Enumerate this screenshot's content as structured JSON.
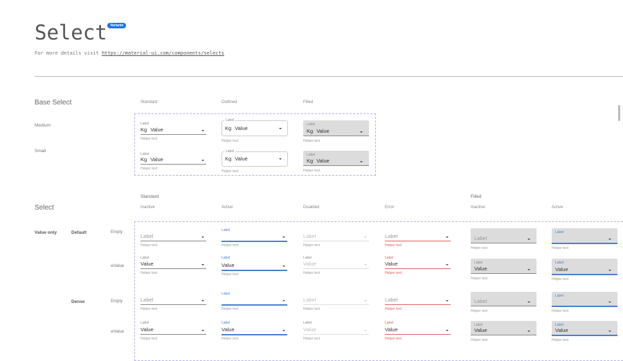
{
  "header": {
    "title": "Select",
    "badge": "Variants",
    "intro_text": "For more details visit ",
    "link": "https://material-ui.com/components/selects"
  },
  "base": {
    "title": "Base Select",
    "columns": [
      "Standard",
      "Outlined",
      "Filled"
    ],
    "rows": [
      "Medium",
      "Small"
    ],
    "fields": [
      [
        {
          "variant": "standard",
          "label": "Label",
          "prefix": "Kg",
          "value": "Value",
          "helper": "Helper text"
        },
        {
          "variant": "outlined",
          "label": "Label",
          "prefix": "Kg",
          "value": "Value",
          "helper": "Helper text"
        },
        {
          "variant": "filled",
          "label": "Label",
          "prefix": "Kg",
          "value": "Value",
          "helper": "Helper text"
        }
      ],
      [
        {
          "variant": "standard",
          "label": "Label",
          "prefix": "Kg",
          "value": "Value",
          "helper": "Helper text"
        },
        {
          "variant": "outlined",
          "label": "Label",
          "prefix": "Kg",
          "value": "Value",
          "helper": "Helper text"
        },
        {
          "variant": "filled",
          "label": "Label",
          "prefix": "Kg",
          "value": "Value",
          "helper": "Helper text"
        }
      ]
    ]
  },
  "select": {
    "title": "Select",
    "groups": [
      "Standard",
      "Filled"
    ],
    "columns": [
      "Inactive",
      "Active",
      "Disabled",
      "Error",
      "Inactive",
      "Active"
    ],
    "row_group": "Value only",
    "sizes": [
      "Default",
      "Dense"
    ],
    "row_labels": [
      "Empty",
      "wValue",
      "Empty",
      "wValue"
    ],
    "fields": [
      [
        {
          "variant": "standard",
          "state": "inactive",
          "label": "Label",
          "value": "",
          "helper": "Helper text"
        },
        {
          "variant": "standard",
          "state": "active",
          "label": "Label",
          "value": "",
          "helper": "Helper text"
        },
        {
          "variant": "standard",
          "state": "disabled",
          "label": "Label",
          "value": "",
          "helper": "Helper text"
        },
        {
          "variant": "standard",
          "state": "error",
          "label": "Label",
          "value": "",
          "helper": "Helper text"
        },
        {
          "variant": "filled",
          "state": "inactive",
          "label": "Label",
          "value": "",
          "helper": "Helper text"
        },
        {
          "variant": "filled",
          "state": "active",
          "label": "Label",
          "value": "",
          "helper": "Helper text"
        }
      ],
      [
        {
          "variant": "standard",
          "state": "inactive",
          "label": "Label",
          "value": "Value",
          "helper": "Helper text"
        },
        {
          "variant": "standard",
          "state": "active",
          "label": "Label",
          "value": "Value",
          "helper": "Helper text"
        },
        {
          "variant": "standard",
          "state": "disabled",
          "label": "Label",
          "value": "Value",
          "helper": "Helper text"
        },
        {
          "variant": "standard",
          "state": "error",
          "label": "Label",
          "value": "Value",
          "helper": "Helper text"
        },
        {
          "variant": "filled",
          "state": "inactive",
          "label": "Label",
          "value": "Value",
          "helper": "Helper text"
        },
        {
          "variant": "filled",
          "state": "active",
          "label": "Label",
          "value": "Value",
          "helper": "Helper text"
        }
      ],
      [
        {
          "variant": "standard",
          "state": "inactive",
          "label": "Label",
          "value": "",
          "helper": "Helper text"
        },
        {
          "variant": "standard",
          "state": "active",
          "label": "Label",
          "value": "",
          "helper": "Helper text"
        },
        {
          "variant": "standard",
          "state": "disabled",
          "label": "Label",
          "value": "",
          "helper": "Helper text"
        },
        {
          "variant": "standard",
          "state": "error",
          "label": "Label",
          "value": "",
          "helper": "Helper text"
        },
        {
          "variant": "filled",
          "state": "inactive",
          "label": "Label",
          "value": "",
          "helper": "Helper text"
        },
        {
          "variant": "filled",
          "state": "active",
          "label": "Label",
          "value": "",
          "helper": "Helper text"
        }
      ],
      [
        {
          "variant": "standard",
          "state": "inactive",
          "label": "Label",
          "value": "Value",
          "helper": "Helper text"
        },
        {
          "variant": "standard",
          "state": "active",
          "label": "Label",
          "value": "Value",
          "helper": "Helper text"
        },
        {
          "variant": "standard",
          "state": "disabled",
          "label": "Label",
          "value": "Value",
          "helper": "Helper text"
        },
        {
          "variant": "standard",
          "state": "error",
          "label": "Label",
          "value": "Value",
          "helper": "Helper text"
        },
        {
          "variant": "filled",
          "state": "inactive",
          "label": "Label",
          "value": "Value",
          "helper": "Helper text"
        },
        {
          "variant": "filled",
          "state": "active",
          "label": "Label",
          "value": "Value",
          "helper": "Helper text"
        }
      ]
    ]
  },
  "colors": {
    "accent": "#4a7fd4",
    "error": "#e0605a",
    "badge": "#1a73e8",
    "frame": "#b6aef0",
    "filled_bg": "#dcdcdc"
  }
}
